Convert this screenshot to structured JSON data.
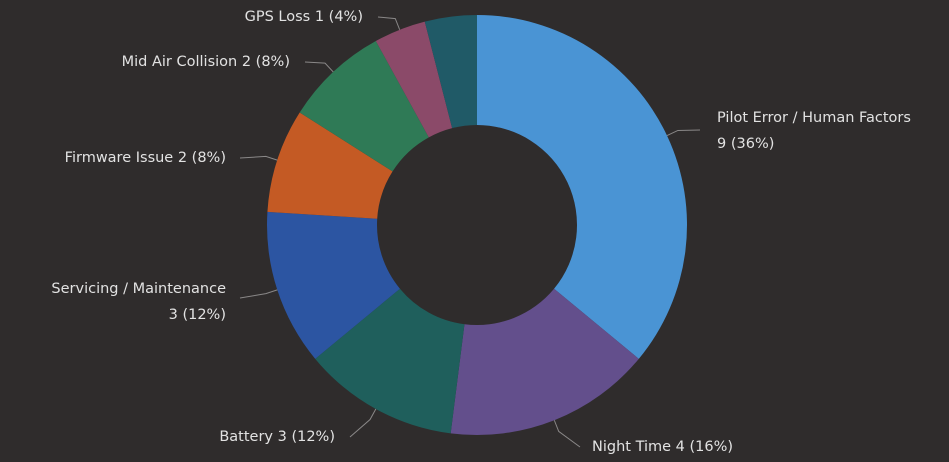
{
  "chart_data": {
    "type": "donut",
    "categories": [
      "Pilot Error / Human Factors",
      "Night Time",
      "Battery",
      "Servicing / Maintenance",
      "Firmware Issue",
      "Mid Air Collision",
      "GPS Loss",
      null
    ],
    "values": [
      9,
      4,
      3,
      3,
      2,
      2,
      1,
      1
    ],
    "value_labels": [
      "9 (36%)",
      "4 (16%)",
      "3 (12%)",
      "3 (12%)",
      "2 (8%)",
      "2 (8%)",
      "1 (4%)",
      null
    ],
    "colors": [
      "#4a94d4",
      "#634f8c",
      "#1f5f5c",
      "#2c55a2",
      "#c45a24",
      "#2f7a56",
      "#8b4a69",
      "#205a67"
    ]
  }
}
